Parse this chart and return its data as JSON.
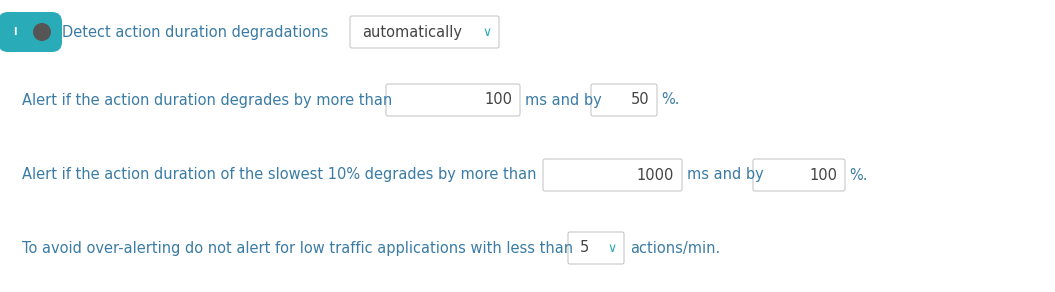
{
  "bg_color": "#ffffff",
  "text_color": "#3a7ca5",
  "toggle_bg": "#2aabb8",
  "toggle_knob": "#555555",
  "border_color": "#bbbbbb",
  "border_color2": "#c8c8c8",
  "figw": 10.55,
  "figh": 2.92,
  "dpi": 100,
  "toggle_label": "Detect action duration degradations",
  "auto_text": "automatically",
  "chevron_color": "#2aabb8",
  "row2_before": "Alert if the action duration degrades by more than",
  "row2_val1": "100",
  "row2_mid": "ms and by",
  "row2_val2": "50",
  "row2_after": "%.",
  "row3_before": "Alert if the action duration of the slowest 10% degrades by more than",
  "row3_val1": "1000",
  "row3_mid": "ms and by",
  "row3_val2": "100",
  "row3_after": "%.",
  "row4_before": "To avoid over-alerting do not alert for low traffic applications with less than",
  "row4_val": "5",
  "row4_after": "actions/min.",
  "font_size": 10.5,
  "small_font": 9
}
